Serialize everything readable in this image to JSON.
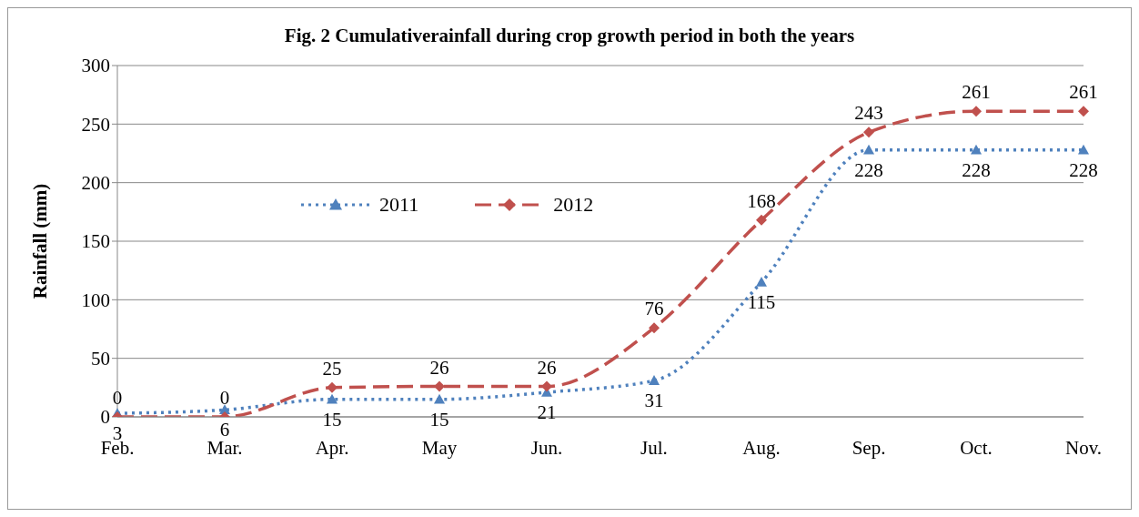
{
  "chart_data": {
    "type": "line",
    "title": "Fig. 2 Cumulativerainfall during crop growth period in both the years",
    "ylabel": "Rainfall (mm)",
    "categories": [
      "Feb.",
      "Mar.",
      "Apr.",
      "May",
      "Jun.",
      "Jul.",
      "Aug.",
      "Sep.",
      "Oct.",
      "Nov."
    ],
    "series": [
      {
        "name": "2011",
        "color": "#4f81bd",
        "marker": "triangle",
        "line_style": "dotted",
        "values": [
          3,
          6,
          15,
          15,
          21,
          31,
          115,
          228,
          228,
          228
        ]
      },
      {
        "name": "2012",
        "color": "#c0504d",
        "marker": "diamond",
        "line_style": "dashed",
        "values": [
          0,
          0,
          25,
          26,
          26,
          76,
          168,
          243,
          261,
          261
        ]
      }
    ],
    "ylim": [
      0,
      300
    ],
    "yticks": [
      0,
      50,
      100,
      150,
      200,
      250,
      300
    ],
    "grid": "y",
    "legend": "top left",
    "data_labels": true
  }
}
